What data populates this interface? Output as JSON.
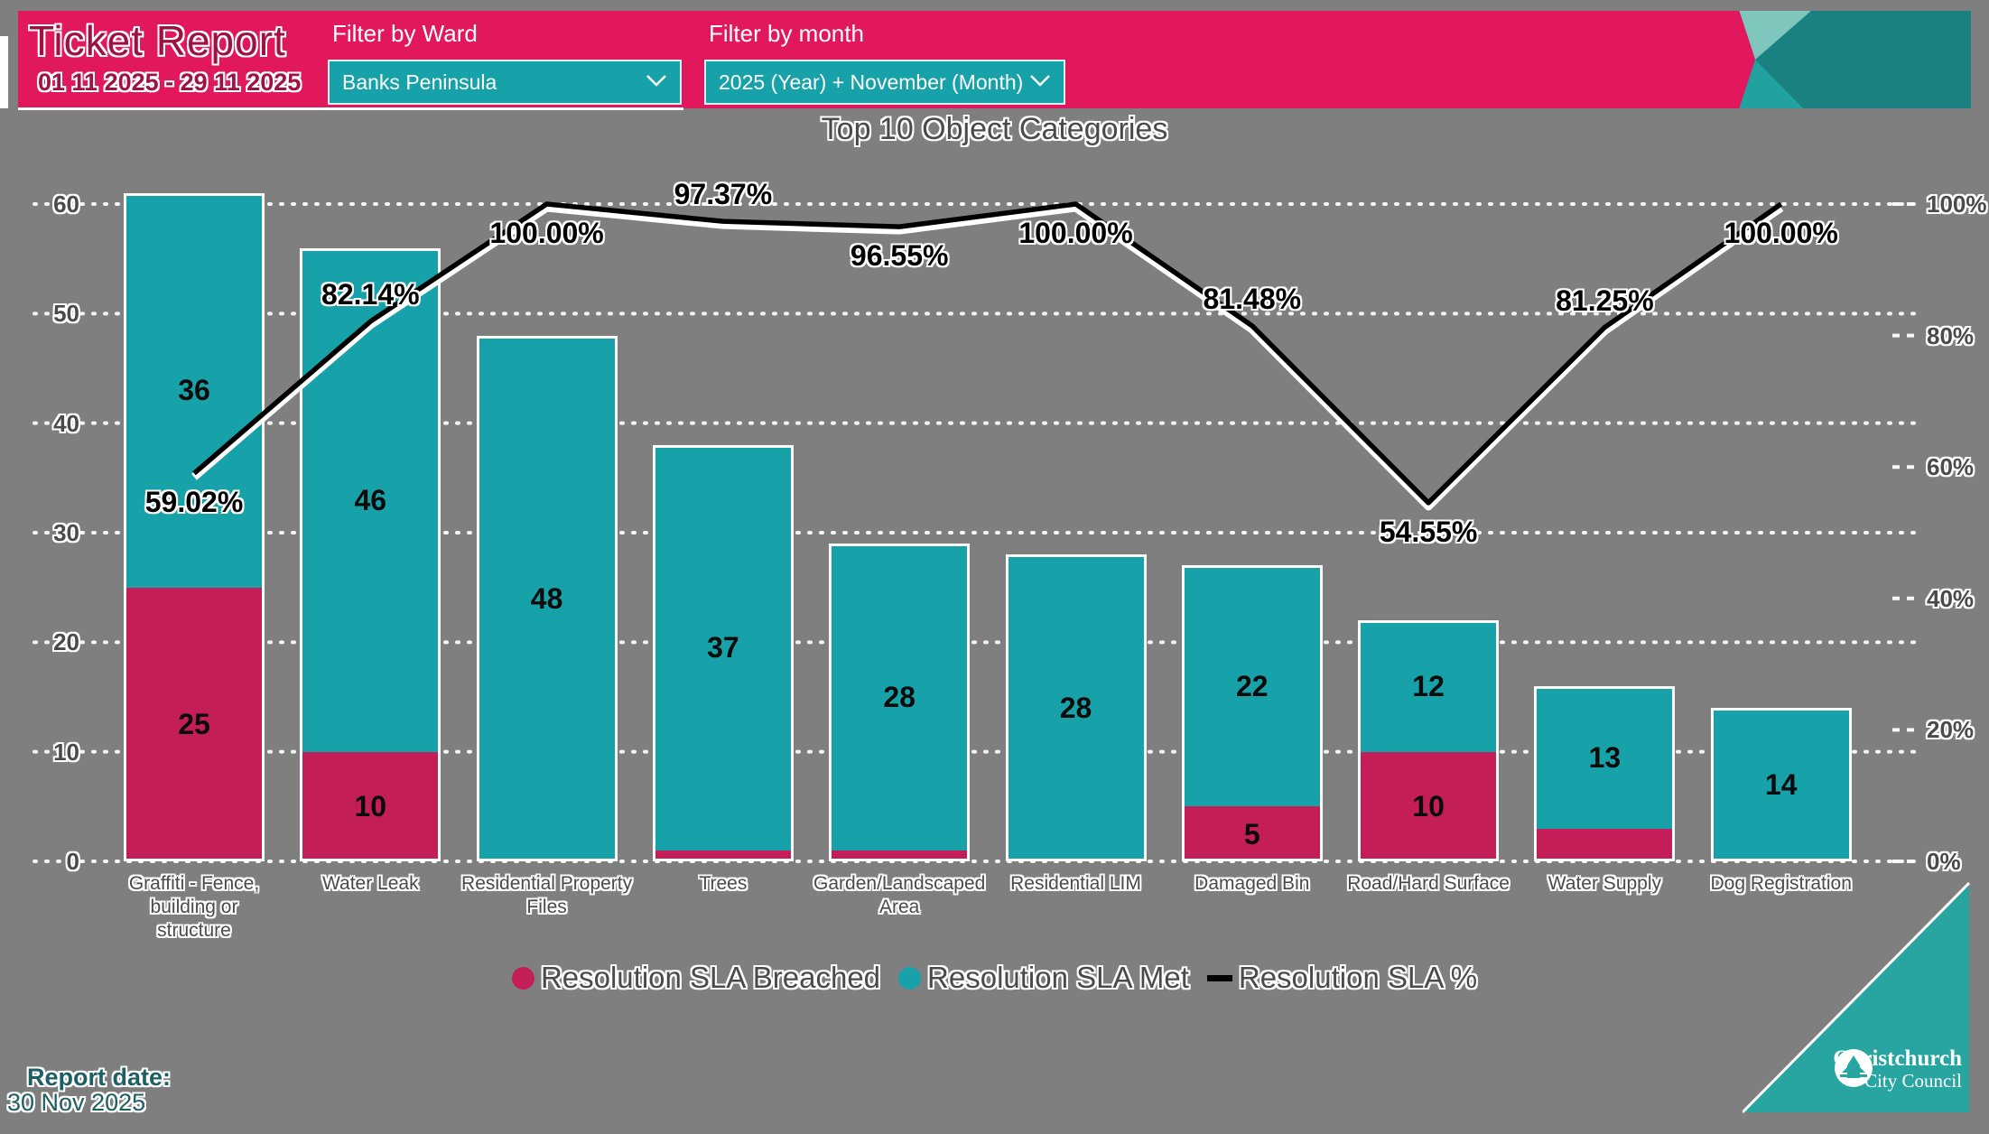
{
  "app": {
    "background": "#7F7F7F"
  },
  "header": {
    "title": "Ticket Report",
    "date_range": "01 11 2025 - 29 11 2025",
    "filters": [
      {
        "label": "Filter by Ward",
        "value": "Banks Peninsula"
      },
      {
        "label": "Filter by month",
        "value": "2025 (Year) + November (Month)"
      }
    ],
    "colors": {
      "band": "#E1185C",
      "dropdown": "#17A2AA",
      "corner_dark": "#1A8180",
      "corner_light": "#7FC6BD",
      "corner_mid": "#21A2A0"
    }
  },
  "chart_data": {
    "type": "combo: stacked-bar + line",
    "title": "Top 10 Object Categories",
    "categories": [
      "Graffiti - Fence, building or structure",
      "Water Leak",
      "Residential Property Files",
      "Trees",
      "Garden/Landscaped Area",
      "Residential LIM",
      "Damaged Bin",
      "Road/Hard Surface",
      "Water Supply",
      "Dog Registration"
    ],
    "x_label_lines": [
      [
        "Graffiti - Fence,",
        "building or",
        "structure"
      ],
      [
        "Water Leak"
      ],
      [
        "Residential Property",
        "Files"
      ],
      [
        "Trees"
      ],
      [
        "Garden/Landscaped",
        "Area"
      ],
      [
        "Residential LIM"
      ],
      [
        "Damaged Bin"
      ],
      [
        "Road/Hard Surface"
      ],
      [
        "Water Supply"
      ],
      [
        "Dog Registration"
      ]
    ],
    "series": [
      {
        "name": "Resolution SLA Breached",
        "type": "bar",
        "color": "#C31E58",
        "values": [
          25,
          10,
          0,
          1,
          1,
          0,
          5,
          10,
          3,
          0
        ],
        "labels": [
          "25",
          "10",
          "",
          "",
          "",
          "",
          "5",
          "10",
          "",
          ""
        ]
      },
      {
        "name": "Resolution SLA Met",
        "type": "bar",
        "color": "#17A2AA",
        "values": [
          36,
          46,
          48,
          37,
          28,
          28,
          22,
          12,
          13,
          14
        ],
        "labels": [
          "36",
          "46",
          "48",
          "37",
          "28",
          "28",
          "22",
          "12",
          "13",
          "14"
        ]
      },
      {
        "name": "Resolution SLA %",
        "type": "line",
        "color": "#000000",
        "values": [
          59.02,
          82.14,
          100,
          97.37,
          96.55,
          100,
          81.48,
          54.55,
          81.25,
          100
        ],
        "labels": [
          "59.02%",
          "82.14%",
          "100.00%",
          "97.37%",
          "96.55%",
          "100.00%",
          "81.48%",
          "54.55%",
          "81.25%",
          "100.00%"
        ],
        "label_side": [
          "below",
          "above",
          "below",
          "above",
          "below",
          "below",
          "above",
          "below",
          "above",
          "below"
        ]
      }
    ],
    "left_axis": {
      "min": 0,
      "max": 60,
      "ticks": [
        "60",
        "50",
        "40",
        "30",
        "20",
        "10",
        "0"
      ]
    },
    "right_axis": {
      "min_label": "0%",
      "max_label": "100%",
      "ticks": [
        "100%",
        "80%",
        "60%",
        "40%",
        "20%",
        "0%"
      ]
    },
    "legend": [
      {
        "label": "Resolution SLA Breached",
        "marker": "circle",
        "color": "#C31E58"
      },
      {
        "label": "Resolution SLA Met",
        "marker": "circle",
        "color": "#17A2AA"
      },
      {
        "label": "Resolution SLA %",
        "marker": "dash",
        "color": "#000000"
      }
    ],
    "gridlines": "horizontal dotted white"
  },
  "footer": {
    "report_date_label": "Report date:",
    "report_date_value": "30 Nov 2025",
    "logo": {
      "line1": "Christchurch",
      "line2": "City Council"
    }
  }
}
